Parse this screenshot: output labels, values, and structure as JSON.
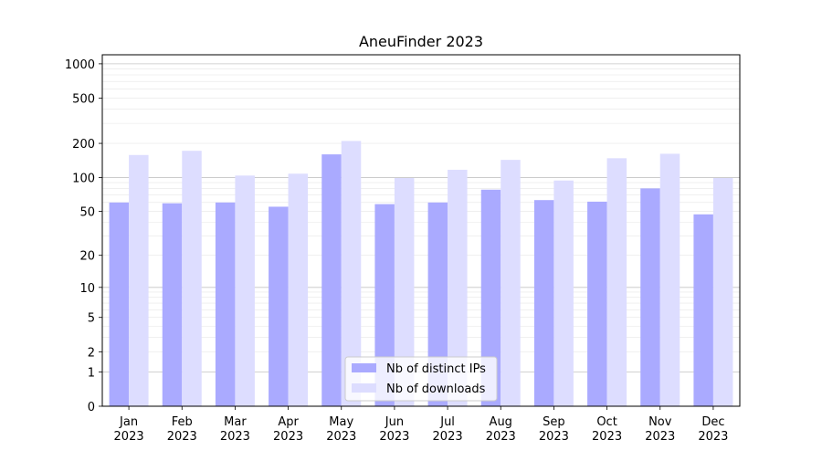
{
  "chart_data": {
    "type": "bar",
    "title": "AneuFinder 2023",
    "xlabel": "",
    "ylabel": "",
    "yscale": "log(1+y)",
    "ylim": [
      0,
      1200
    ],
    "yticks": [
      {
        "value": 0,
        "label": "0"
      },
      {
        "value": 1,
        "label": "1"
      },
      {
        "value": 2,
        "label": "2"
      },
      {
        "value": 5,
        "label": "5"
      },
      {
        "value": 10,
        "label": "10"
      },
      {
        "value": 20,
        "label": "20"
      },
      {
        "value": 50,
        "label": "50"
      },
      {
        "value": 100,
        "label": "100"
      },
      {
        "value": 200,
        "label": "200"
      },
      {
        "value": 500,
        "label": "500"
      },
      {
        "value": 1000,
        "label": "1000"
      }
    ],
    "categories": [
      {
        "month": "Jan",
        "year": "2023"
      },
      {
        "month": "Feb",
        "year": "2023"
      },
      {
        "month": "Mar",
        "year": "2023"
      },
      {
        "month": "Apr",
        "year": "2023"
      },
      {
        "month": "May",
        "year": "2023"
      },
      {
        "month": "Jun",
        "year": "2023"
      },
      {
        "month": "Jul",
        "year": "2023"
      },
      {
        "month": "Aug",
        "year": "2023"
      },
      {
        "month": "Sep",
        "year": "2023"
      },
      {
        "month": "Oct",
        "year": "2023"
      },
      {
        "month": "Nov",
        "year": "2023"
      },
      {
        "month": "Dec",
        "year": "2023"
      }
    ],
    "series": [
      {
        "name": "Nb of distinct IPs",
        "color": "#aaaaff",
        "values": [
          60,
          59,
          60,
          55,
          160,
          58,
          60,
          78,
          63,
          61,
          80,
          47
        ]
      },
      {
        "name": "Nb of downloads",
        "color": "#ddddff",
        "values": [
          158,
          172,
          104,
          108,
          210,
          99,
          117,
          143,
          94,
          148,
          162,
          99
        ]
      }
    ],
    "grid": true,
    "legend_position": "bottom-center"
  }
}
